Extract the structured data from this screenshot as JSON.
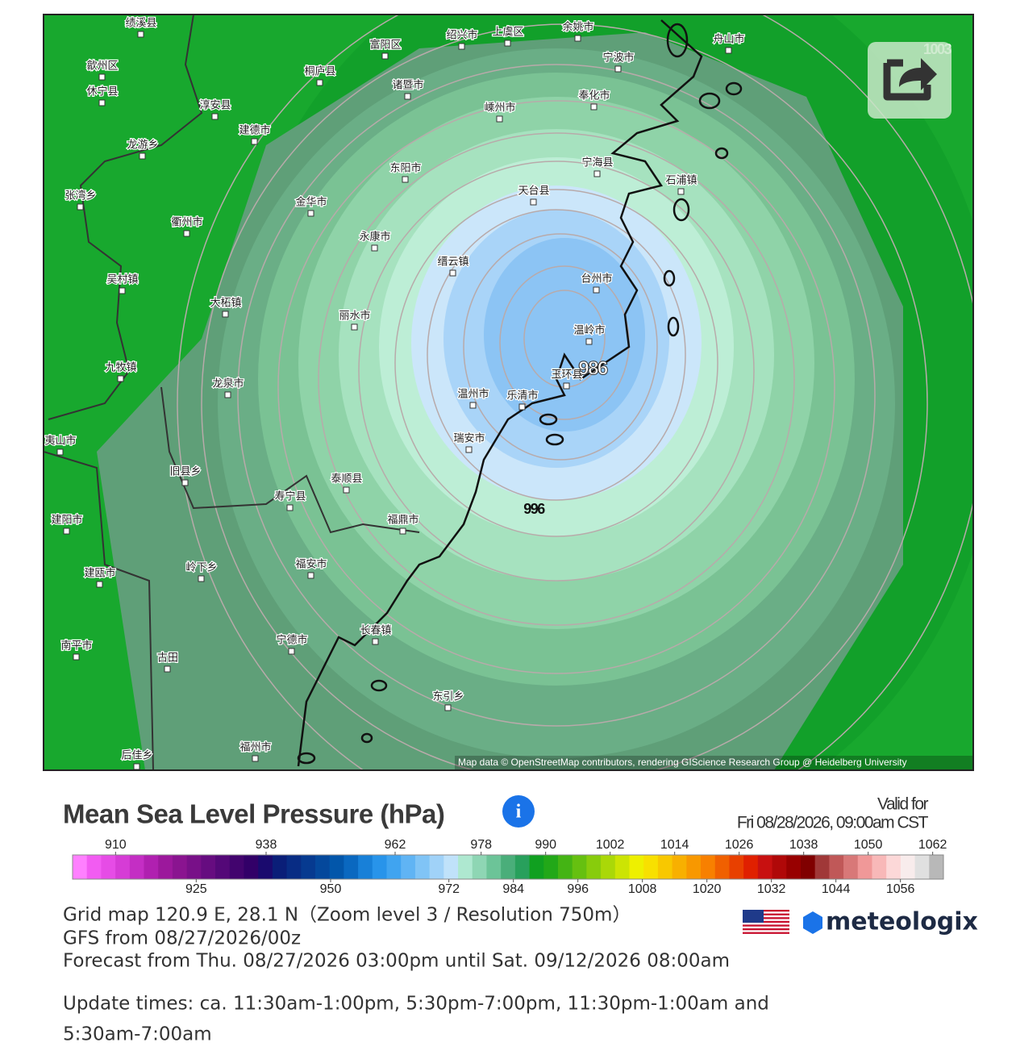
{
  "map": {
    "cities": [
      "绩溪县",
      "歙州区",
      "休宁县",
      "淳安县",
      "桐庐县",
      "富阳区",
      "诸暨市",
      "绍兴市",
      "上虞区",
      "余姚市",
      "宁波市",
      "舟山市",
      "奉化市",
      "嵊州市",
      "建德市",
      "龙游乡",
      "东阳市",
      "宁海县",
      "天台县",
      "石浦镇",
      "张湾乡",
      "金华市",
      "衢州市",
      "永康市",
      "缙云镇",
      "台州市",
      "吴村镇",
      "大柘镇",
      "丽水市",
      "温岭市",
      "玉环县",
      "九牧镇",
      "龙泉市",
      "温州市",
      "乐清市",
      "瑞安市",
      "泰顺县",
      "寿宁县",
      "旧县乡",
      "福鼎市",
      "建阳市",
      "建瓯市",
      "岭下乡",
      "福安市",
      "宁德市",
      "长春镇",
      "南平市",
      "古田",
      "东引乡",
      "福州市",
      "后佳乡",
      "夷山市"
    ],
    "contour_labels": [
      986,
      996,
      1003
    ],
    "attribution": "Map data © OpenStreetMap contributors, rendering GIScience Research Group @ Heidelberg University"
  },
  "title": "Mean Sea Level Pressure (hPa)",
  "valid": {
    "label": "Valid for",
    "time": "Fri 08/28/2026, 09:00am CST"
  },
  "colorbar": {
    "lim": [
      902,
      1064
    ],
    "top_ticks": [
      910,
      938,
      962,
      978,
      990,
      1002,
      1014,
      1026,
      1038,
      1050,
      1062
    ],
    "bottom_ticks": [
      925,
      950,
      972,
      984,
      996,
      1008,
      1020,
      1032,
      1044,
      1056
    ],
    "colors": [
      "#ff80ff",
      "#f25cf2",
      "#e64ce6",
      "#d63cd6",
      "#c42ec4",
      "#b020b0",
      "#9c189c",
      "#8a1490",
      "#781088",
      "#660c80",
      "#540878",
      "#42046e",
      "#320068",
      "#1a0a6e",
      "#0a1e78",
      "#082c84",
      "#063a90",
      "#04489c",
      "#0256aa",
      "#0a68c0",
      "#1880d8",
      "#2894ea",
      "#40a4f0",
      "#60b4f4",
      "#80c4f6",
      "#a0d2f8",
      "#c0e2fa",
      "#aee8d0",
      "#8ed6b4",
      "#6cc498",
      "#4aae7a",
      "#28a05c",
      "#10a020",
      "#22a818",
      "#44b414",
      "#66c010",
      "#88cc0c",
      "#aad808",
      "#cce404",
      "#eef000",
      "#f8e000",
      "#f8c800",
      "#f8b000",
      "#f89800",
      "#f88000",
      "#f06000",
      "#e84000",
      "#e02000",
      "#c81010",
      "#b00808",
      "#980000",
      "#800000",
      "#a03838",
      "#c05858",
      "#d87878",
      "#f09898",
      "#f8b8b8",
      "#fcd8d8",
      "#f8ecec",
      "#e0e0e0",
      "#b8b8b8"
    ]
  },
  "info": [
    "Grid map 120.9 E, 28.1 N（Zoom level 3 / Resolution 750m）",
    "GFS from 08/27/2026/00z",
    "Forecast from Thu. 08/27/2026 03:00pm until Sat. 09/12/2026 08:00am",
    "Update times: ca. 11:30am-1:00pm, 5:30pm-7:00pm, 11:30pm-1:00am and",
    "5:30am-7:00am"
  ],
  "brand": "meteologix"
}
